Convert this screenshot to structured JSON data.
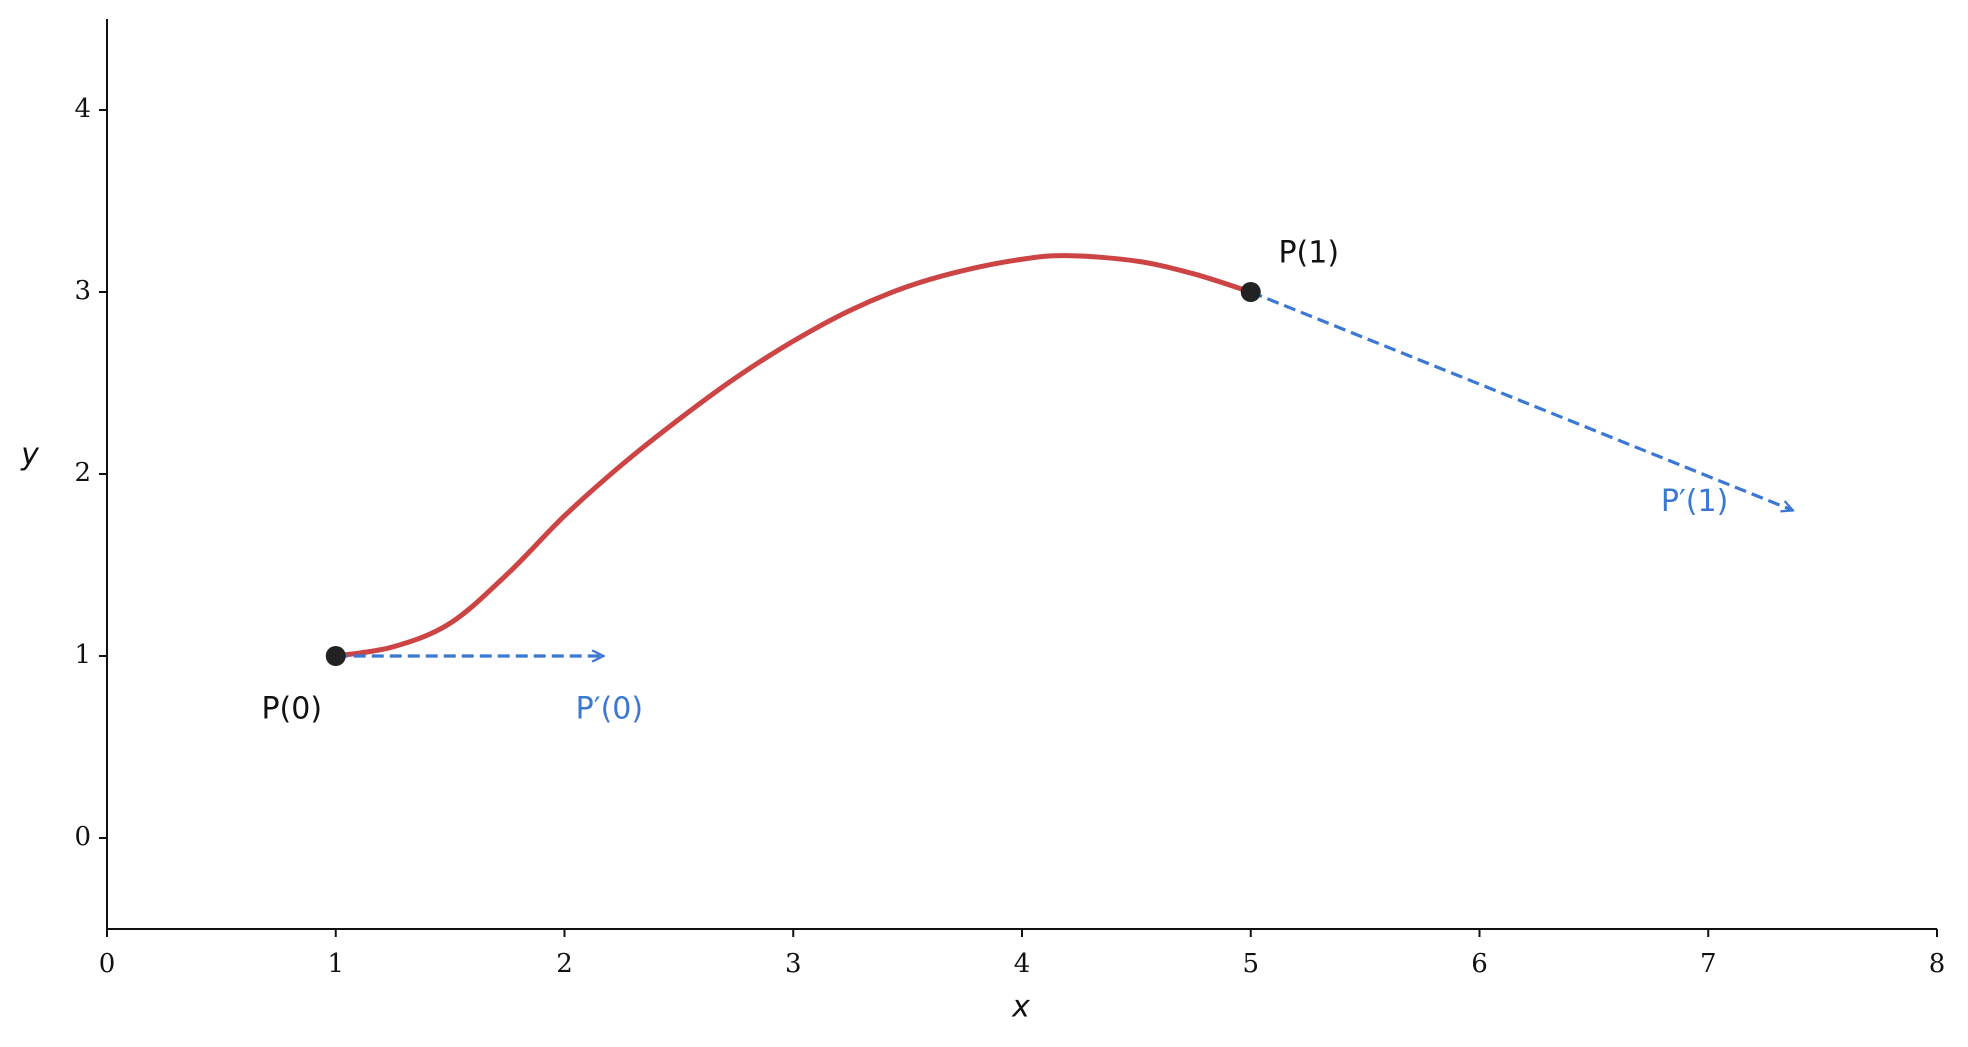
{
  "chart_data": {
    "type": "line",
    "x_label": "x",
    "y_label": "y",
    "xlim": [
      0,
      8
    ],
    "ylim": [
      -0.5,
      4.5
    ],
    "xticks": [
      0,
      1,
      2,
      3,
      4,
      5,
      6,
      7,
      8
    ],
    "yticks": [
      0,
      1,
      2,
      3,
      4
    ],
    "series": [
      {
        "color": "#cc4444",
        "x": [
          1,
          1.25,
          1.5,
          1.75,
          2,
          2.25,
          2.5,
          2.75,
          3,
          3.25,
          3.5,
          3.75,
          4,
          4.2,
          4.5,
          4.75,
          5
        ],
        "values": [
          1,
          1.05,
          1.18,
          1.45,
          1.77,
          2.05,
          2.3,
          2.53,
          2.73,
          2.9,
          3.03,
          3.12,
          3.18,
          3.2,
          3.17,
          3.1,
          3
        ]
      }
    ],
    "points": [
      {
        "label": "P(0)",
        "x": 1,
        "y": 1,
        "color": "#222222"
      },
      {
        "label": "P(1)",
        "x": 5,
        "y": 3,
        "color": "#222222"
      }
    ],
    "tangents": [
      {
        "label": "P′(0)",
        "x": [
          1,
          2.17
        ],
        "y": [
          1,
          1
        ],
        "color": "#3a78d4"
      },
      {
        "label": "P′(1)",
        "x": [
          5,
          7.37
        ],
        "y": [
          3,
          1.8
        ],
        "color": "#3a78d4"
      }
    ]
  }
}
